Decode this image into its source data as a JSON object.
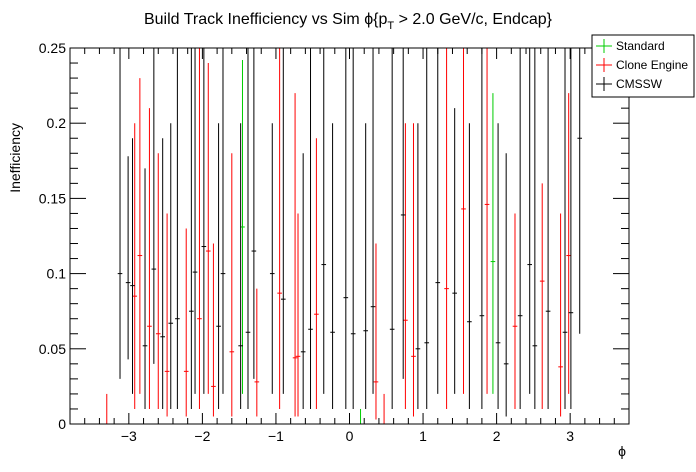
{
  "chart_data": {
    "type": "scatter",
    "title_main": "Build Track Inefficiency vs Sim ",
    "title_phi": "ϕ",
    "title_open": "{p",
    "title_sub": "T",
    "title_rest": " > 2.0 GeV/c, Endcap}",
    "xlabel": "ϕ",
    "ylabel": "Inefficiency",
    "xlim": [
      -3.8,
      3.8
    ],
    "ylim": [
      0,
      0.25
    ],
    "xticks": [
      -3,
      -2,
      -1,
      0,
      1,
      2,
      3
    ],
    "xtick_labels": [
      "−3",
      "−2",
      "−1",
      "0",
      "1",
      "2",
      "3"
    ],
    "yticks": [
      0,
      0.05,
      0.1,
      0.15,
      0.2,
      0.25
    ],
    "ytick_labels": [
      "0",
      "0.05",
      "0.1",
      "0.15",
      "0.2",
      "0.25"
    ],
    "bin_half_width": 0.0314,
    "grid": false,
    "legend_position": "top-right",
    "series": [
      {
        "name": "Standard",
        "color": "#00cc00",
        "points": [
          {
            "x": -1.455,
            "y": 0.131,
            "lo": 0.02,
            "hi": 0.242
          },
          {
            "x": 0.15,
            "y": 0,
            "lo": 0,
            "hi": 0.01
          },
          {
            "x": 1.95,
            "y": 0.108,
            "lo": 0.02,
            "hi": 0.22
          }
        ]
      },
      {
        "name": "Clone Engine",
        "color": "#ff0000",
        "points": [
          {
            "x": -3.3,
            "y": 0,
            "lo": 0,
            "hi": 0.02
          },
          {
            "x": -2.92,
            "y": 0.085,
            "lo": 0.01,
            "hi": 0.2
          },
          {
            "x": -2.85,
            "y": 0.112,
            "lo": 0.02,
            "hi": 0.23
          },
          {
            "x": -2.72,
            "y": 0.065,
            "lo": 0.01,
            "hi": 0.21
          },
          {
            "x": -2.6,
            "y": 0.06,
            "lo": 0.01,
            "hi": 0.18
          },
          {
            "x": -2.48,
            "y": 0.035,
            "lo": 0.005,
            "hi": 0.14
          },
          {
            "x": -2.22,
            "y": 0.035,
            "lo": 0.005,
            "hi": 0.13
          },
          {
            "x": -2.04,
            "y": 0.07,
            "lo": 0.01,
            "hi": 0.25
          },
          {
            "x": -1.92,
            "y": 0.115,
            "lo": 0.02,
            "hi": 0.24
          },
          {
            "x": -1.85,
            "y": 0.025,
            "lo": 0.005,
            "hi": 0.12
          },
          {
            "x": -1.6,
            "y": 0.048,
            "lo": 0.005,
            "hi": 0.18
          },
          {
            "x": -1.26,
            "y": 0.028,
            "lo": 0.005,
            "hi": 0.09
          },
          {
            "x": -0.95,
            "y": 0.087,
            "lo": 0.01,
            "hi": 0.25
          },
          {
            "x": -0.74,
            "y": 0.044,
            "lo": 0.005,
            "hi": 0.22
          },
          {
            "x": -0.7,
            "y": 0.045,
            "lo": 0.005,
            "hi": 0.14
          },
          {
            "x": -0.45,
            "y": 0.073,
            "lo": 0.01,
            "hi": 0.19
          },
          {
            "x": 0.36,
            "y": 0.028,
            "lo": 0.003,
            "hi": 0.12
          },
          {
            "x": 0.47,
            "y": 0,
            "lo": 0,
            "hi": 0.02
          },
          {
            "x": 0.76,
            "y": 0.069,
            "lo": 0.01,
            "hi": 0.2
          },
          {
            "x": 0.87,
            "y": 0.045,
            "lo": 0.005,
            "hi": 0.2
          },
          {
            "x": 1.32,
            "y": 0.09,
            "lo": 0.01,
            "hi": 0.25
          },
          {
            "x": 1.55,
            "y": 0.143,
            "lo": 0.02,
            "hi": 0.25
          },
          {
            "x": 1.87,
            "y": 0.146,
            "lo": 0.02,
            "hi": 0.25
          },
          {
            "x": 2.25,
            "y": 0.065,
            "lo": 0.01,
            "hi": 0.14
          },
          {
            "x": 2.62,
            "y": 0.095,
            "lo": 0.01,
            "hi": 0.16
          },
          {
            "x": 2.87,
            "y": 0.038,
            "lo": 0.005,
            "hi": 0.14
          },
          {
            "x": 2.98,
            "y": 0.112,
            "lo": 0.02,
            "hi": 0.22
          }
        ]
      },
      {
        "name": "CMSSW",
        "color": "#000000",
        "points": [
          {
            "x": -3.12,
            "y": 0.1,
            "lo": 0.03,
            "hi": 0.25
          },
          {
            "x": -3.01,
            "y": 0.094,
            "lo": 0.043,
            "hi": 0.178
          },
          {
            "x": -2.95,
            "y": 0.092,
            "lo": 0.02,
            "hi": 0.19
          },
          {
            "x": -2.78,
            "y": 0.052,
            "lo": 0.01,
            "hi": 0.17
          },
          {
            "x": -2.66,
            "y": 0.103,
            "lo": 0.04,
            "hi": 0.25
          },
          {
            "x": -2.54,
            "y": 0.058,
            "lo": 0.01,
            "hi": 0.19
          },
          {
            "x": -2.43,
            "y": 0.067,
            "lo": 0.01,
            "hi": 0.2
          },
          {
            "x": -2.34,
            "y": 0.07,
            "lo": 0.01,
            "hi": 0.25
          },
          {
            "x": -2.15,
            "y": 0.075,
            "lo": 0.01,
            "hi": 0.25
          },
          {
            "x": -2.1,
            "y": 0.101,
            "lo": 0.02,
            "hi": 0.25
          },
          {
            "x": -1.98,
            "y": 0.118,
            "lo": 0.02,
            "hi": 0.25
          },
          {
            "x": -1.78,
            "y": 0.065,
            "lo": 0.01,
            "hi": 0.2
          },
          {
            "x": -1.72,
            "y": 0.1,
            "lo": 0.02,
            "hi": 0.25
          },
          {
            "x": -1.48,
            "y": 0.052,
            "lo": 0.01,
            "hi": 0.2
          },
          {
            "x": -1.38,
            "y": 0.061,
            "lo": 0.01,
            "hi": 0.25
          },
          {
            "x": -1.3,
            "y": 0.115,
            "lo": 0.03,
            "hi": 0.25
          },
          {
            "x": -1.05,
            "y": 0.1,
            "lo": 0.02,
            "hi": 0.2
          },
          {
            "x": -0.9,
            "y": 0.083,
            "lo": 0.02,
            "hi": 0.25
          },
          {
            "x": -0.63,
            "y": 0.048,
            "lo": 0.01,
            "hi": 0.18
          },
          {
            "x": -0.53,
            "y": 0.063,
            "lo": 0.01,
            "hi": 0.25
          },
          {
            "x": -0.35,
            "y": 0.106,
            "lo": 0.02,
            "hi": 0.25
          },
          {
            "x": -0.23,
            "y": 0.061,
            "lo": 0.01,
            "hi": 0.2
          },
          {
            "x": -0.05,
            "y": 0.084,
            "lo": 0.01,
            "hi": 0.25
          },
          {
            "x": 0.05,
            "y": 0.06,
            "lo": 0.01,
            "hi": 0.25
          },
          {
            "x": 0.22,
            "y": 0.062,
            "lo": 0.01,
            "hi": 0.2
          },
          {
            "x": 0.32,
            "y": 0.078,
            "lo": 0.02,
            "hi": 0.25
          },
          {
            "x": 0.58,
            "y": 0.063,
            "lo": 0.01,
            "hi": 0.25
          },
          {
            "x": 0.73,
            "y": 0.139,
            "lo": 0.03,
            "hi": 0.25
          },
          {
            "x": 0.93,
            "y": 0.05,
            "lo": 0.01,
            "hi": 0.2
          },
          {
            "x": 1.05,
            "y": 0.054,
            "lo": 0.01,
            "hi": 0.25
          },
          {
            "x": 1.2,
            "y": 0.094,
            "lo": 0.02,
            "hi": 0.25
          },
          {
            "x": 1.43,
            "y": 0.087,
            "lo": 0.02,
            "hi": 0.21
          },
          {
            "x": 1.63,
            "y": 0.068,
            "lo": 0.01,
            "hi": 0.2
          },
          {
            "x": 1.8,
            "y": 0.072,
            "lo": 0.01,
            "hi": 0.25
          },
          {
            "x": 2.02,
            "y": 0.054,
            "lo": 0.01,
            "hi": 0.2
          },
          {
            "x": 2.13,
            "y": 0.04,
            "lo": 0.005,
            "hi": 0.18
          },
          {
            "x": 2.32,
            "y": 0.072,
            "lo": 0.01,
            "hi": 0.25
          },
          {
            "x": 2.45,
            "y": 0.106,
            "lo": 0.02,
            "hi": 0.25
          },
          {
            "x": 2.52,
            "y": 0.052,
            "lo": 0.01,
            "hi": 0.25
          },
          {
            "x": 2.7,
            "y": 0.075,
            "lo": 0.01,
            "hi": 0.25
          },
          {
            "x": 2.93,
            "y": 0.061,
            "lo": 0.01,
            "hi": 0.25
          },
          {
            "x": 3.01,
            "y": 0.074,
            "lo": 0.01,
            "hi": 0.25
          },
          {
            "x": 3.13,
            "y": 0.19,
            "lo": 0.06,
            "hi": 0.25
          }
        ]
      }
    ]
  }
}
